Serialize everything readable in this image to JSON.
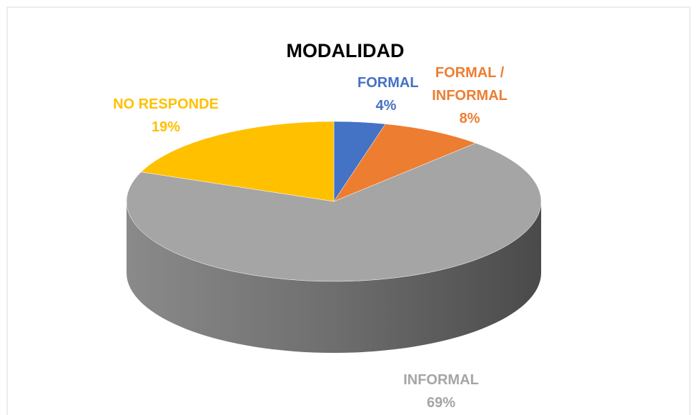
{
  "chart_data": {
    "type": "pie",
    "title": "MODALIDAD",
    "categories": [
      "FORMAL",
      "FORMAL / INFORMAL",
      "INFORMAL",
      "NO RESPONDE"
    ],
    "values": [
      4,
      8,
      69,
      19
    ],
    "value_labels": [
      "4%",
      "8%",
      "69%",
      "19%"
    ],
    "colors": [
      "#4472c4",
      "#ed7d31",
      "#a5a5a5",
      "#ffc000"
    ]
  }
}
